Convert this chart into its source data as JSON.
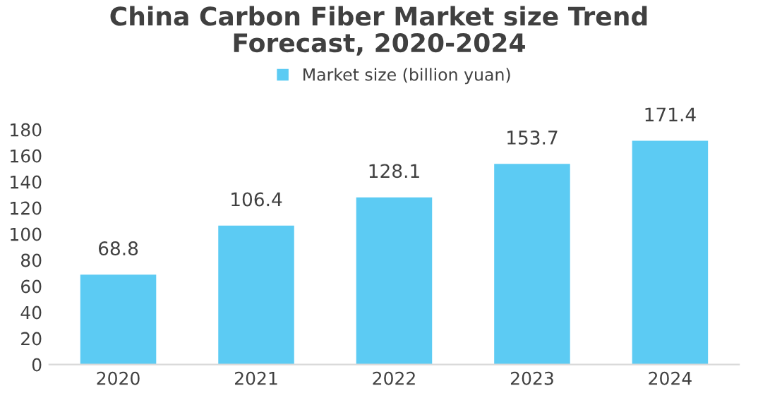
{
  "chart_data": {
    "type": "bar",
    "title": "China Carbon Fiber Market size Trend\nForecast, 2020-2024",
    "categories": [
      "2020",
      "2021",
      "2022",
      "2023",
      "2024"
    ],
    "series": [
      {
        "name": "Market size (billion yuan)",
        "color": "#5ccbf3",
        "values": [
          68.8,
          106.4,
          128.1,
          153.7,
          171.4
        ]
      }
    ],
    "ylim": [
      0,
      180
    ],
    "yticks": [
      0,
      20,
      40,
      60,
      80,
      100,
      120,
      140,
      160,
      180
    ],
    "data_labels": true,
    "legend": "top",
    "grid": false
  }
}
